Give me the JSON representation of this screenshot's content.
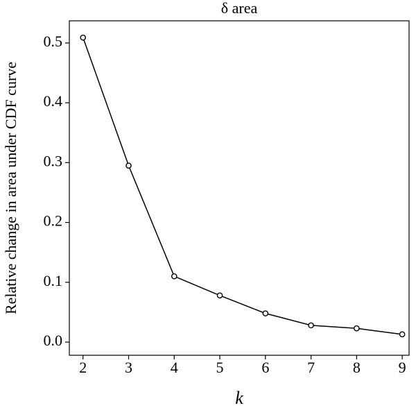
{
  "chart_data": {
    "type": "line",
    "title": "δ area",
    "xlabel": "k",
    "ylabel": "Relative change in area under CDF curve",
    "x": [
      2,
      3,
      4,
      5,
      6,
      7,
      8,
      9
    ],
    "series": [
      {
        "color": "#000000",
        "values": [
          0.509,
          0.295,
          0.11,
          0.078,
          0.048,
          0.028,
          0.023,
          0.013
        ]
      }
    ],
    "xlim": [
      1.7,
      9.15
    ],
    "xticks": [
      2,
      3,
      4,
      5,
      6,
      7,
      8,
      9
    ],
    "ylim": [
      -0.022,
      0.537
    ],
    "yticks": [
      {
        "value": 0,
        "label": "0.0"
      },
      0.1,
      0.2,
      0.3,
      0.4,
      0.5
    ],
    "grid": false
  }
}
